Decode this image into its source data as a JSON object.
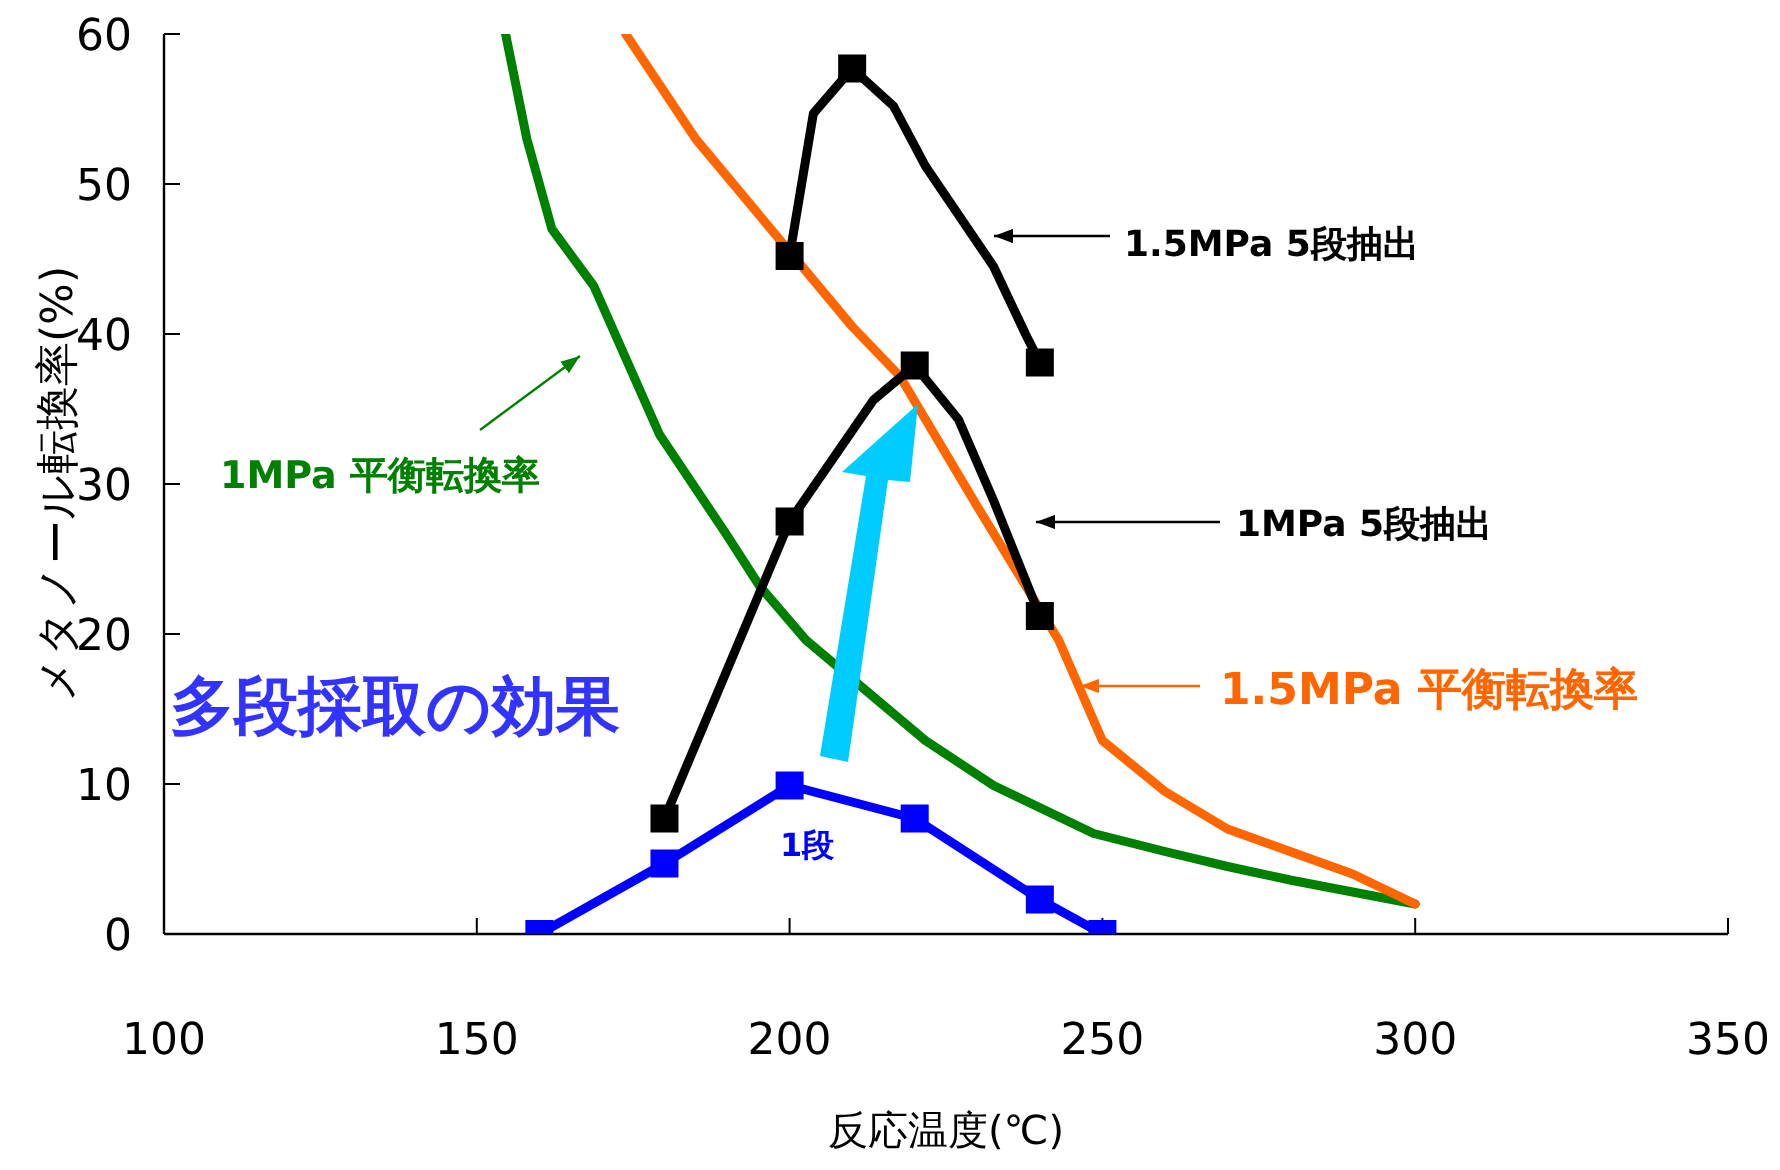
{
  "chart_data": {
    "type": "line",
    "xlabel": "反応温度(℃)",
    "ylabel": "メタノール転換率(%)",
    "xlim": [
      100,
      350
    ],
    "ylim": [
      0,
      60
    ],
    "xticks": [
      100,
      150,
      200,
      250,
      300,
      350
    ],
    "yticks": [
      0,
      10,
      20,
      30,
      40,
      50,
      60
    ],
    "grid": false,
    "legend": "right",
    "series": [
      {
        "name": "1MPa  平衡転換率",
        "color": "#008000",
        "marker": "none",
        "x": [
          154.6,
          158,
          162,
          168.7,
          179.2,
          189.8,
          195.2,
          202.6,
          221.7,
          232.6,
          248.6,
          260,
          270,
          280,
          290,
          300
        ],
        "values": [
          60,
          53,
          47,
          43.2,
          33.3,
          26.7,
          23.2,
          19.6,
          12.9,
          9.9,
          6.7,
          5.5,
          4.5,
          3.6,
          2.8,
          2
        ]
      },
      {
        "name": "1.5MPa  平衡転換率",
        "color": "#ff6600",
        "marker": "none",
        "x": [
          173.8,
          185,
          200,
          210,
          217.6,
          230,
          243,
          250,
          260,
          270,
          280,
          290,
          300
        ],
        "values": [
          60,
          53,
          null,
          40.5,
          37.2,
          28.5,
          19.6,
          12.9,
          9.5,
          7,
          5.5,
          4,
          2
        ]
      },
      {
        "name": "1.5MPa 5段抽出",
        "color": "#000000",
        "marker": "none",
        "x": [
          200,
          203.8,
          210,
          216.6,
          221.7,
          232.6,
          237.7,
          240
        ],
        "values": [
          45.2,
          54.7,
          57.7,
          55.2,
          51.2,
          44.5,
          40,
          38.1
        ]
      },
      {
        "name": "1MPa 5段抽出",
        "color": "#000000",
        "marker": "none",
        "x": [
          180,
          200,
          213.4,
          220,
          227,
          232.6,
          240
        ],
        "values": [
          7.7,
          27.5,
          35.6,
          37.9,
          34.3,
          28.9,
          21.2
        ]
      },
      {
        "name": "1段",
        "color": "#0000ff",
        "marker": "square",
        "x": [
          160,
          180,
          200,
          220,
          240,
          250
        ],
        "values": [
          0,
          4.7,
          9.9,
          7.7,
          2.3,
          0
        ]
      },
      {
        "type": "scatter",
        "color": "#000000",
        "marker": "square",
        "x": [
          200,
          210,
          240
        ],
        "values": [
          45.2,
          57.7,
          38.1
        ]
      },
      {
        "type": "scatter",
        "color": "#000000",
        "marker": "square",
        "x": [
          180,
          200,
          220,
          240
        ],
        "values": [
          7.7,
          27.5,
          37.9,
          21.2
        ]
      }
    ],
    "annotations": [
      "多段採取の効果"
    ]
  }
}
